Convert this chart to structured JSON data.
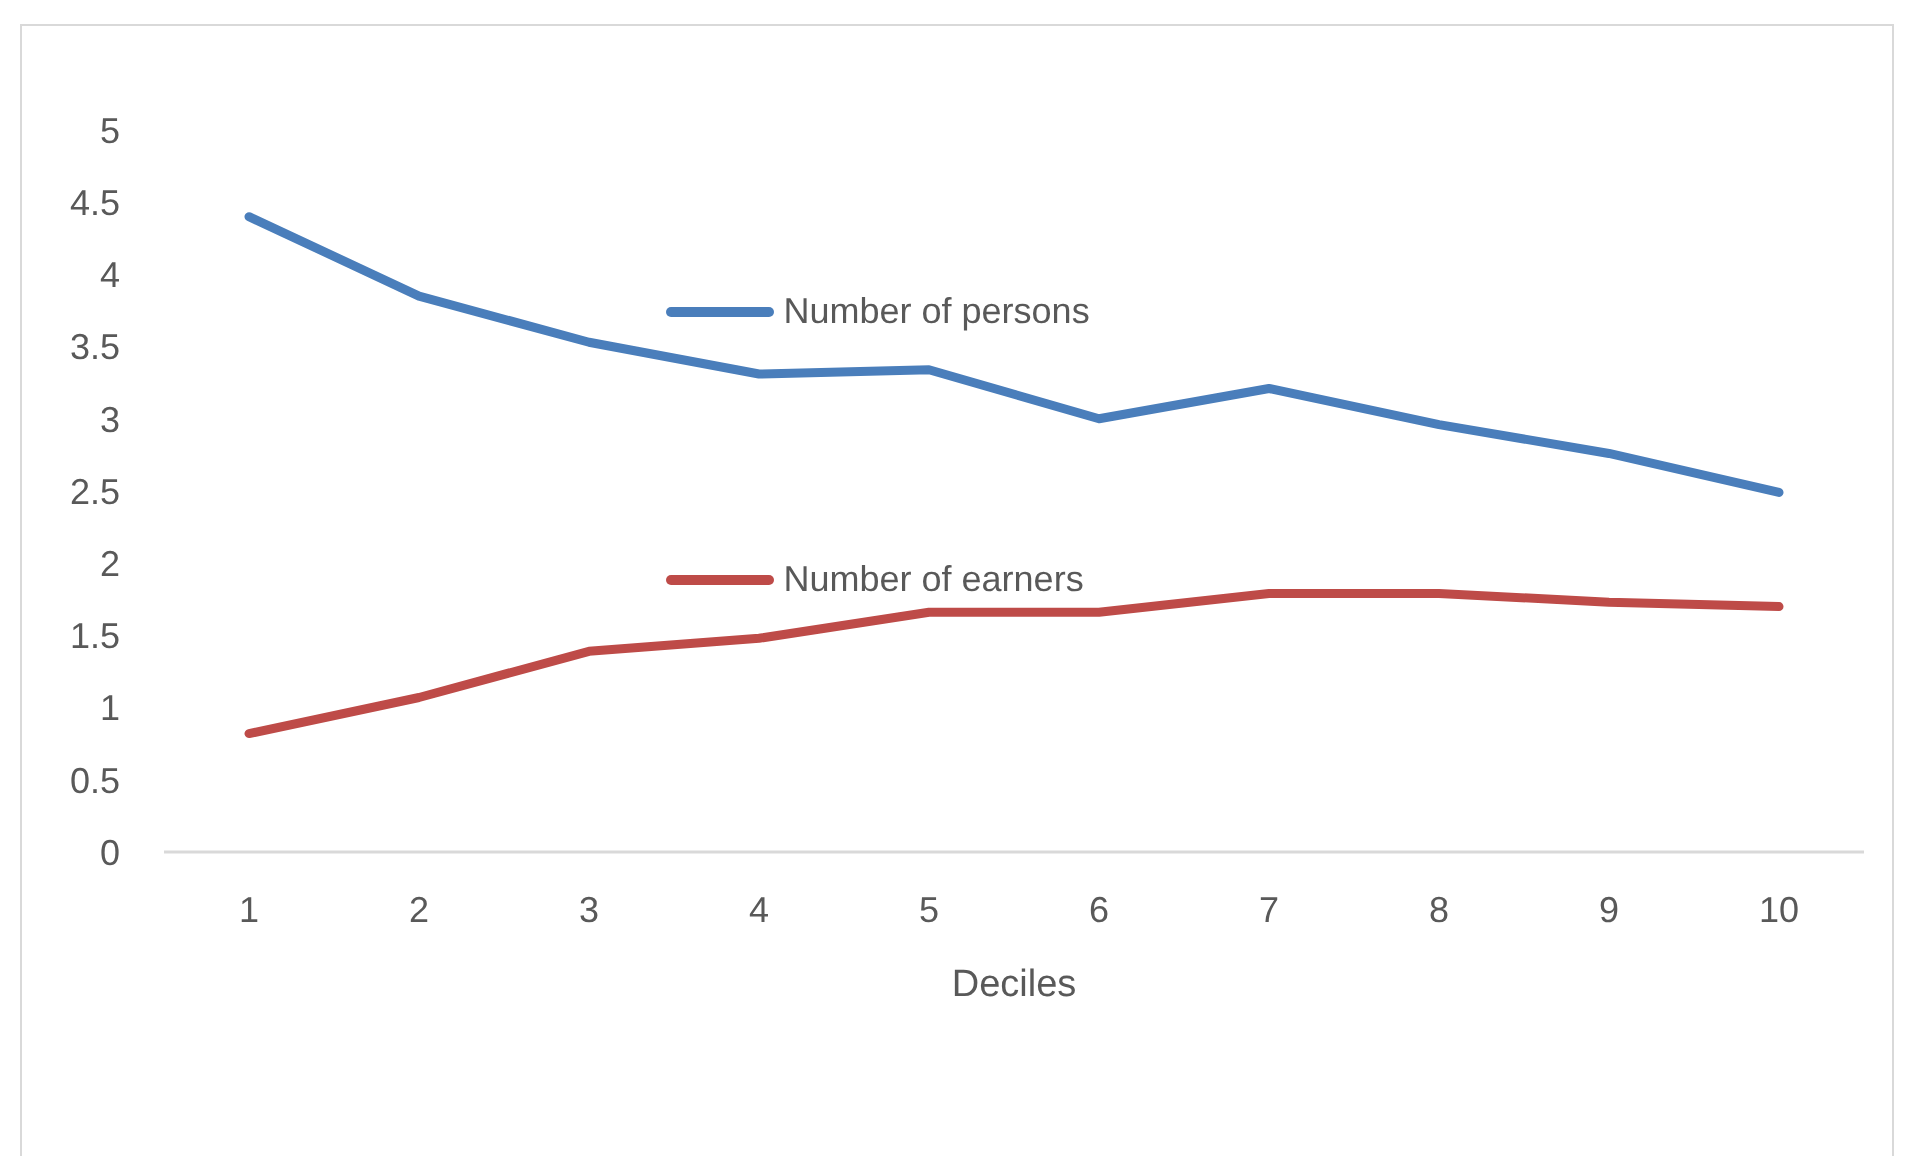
{
  "chart_data": {
    "type": "line",
    "xlabel": "Deciles",
    "categories": [
      "1",
      "2",
      "3",
      "4",
      "5",
      "6",
      "7",
      "8",
      "9",
      "10"
    ],
    "series": [
      {
        "name": "Number of persons",
        "color": "#4a7ebb",
        "values": [
          4.4,
          3.85,
          3.53,
          3.31,
          3.34,
          3.0,
          3.21,
          2.96,
          2.76,
          2.49
        ]
      },
      {
        "name": "Number of earners",
        "color": "#be4b48",
        "values": [
          0.82,
          1.07,
          1.39,
          1.48,
          1.66,
          1.66,
          1.79,
          1.79,
          1.73,
          1.7
        ]
      }
    ],
    "ylim": [
      0,
      5
    ],
    "yticks": [
      0,
      0.5,
      1,
      1.5,
      2,
      2.5,
      3,
      3.5,
      4,
      4.5,
      5
    ],
    "legend": "center"
  }
}
